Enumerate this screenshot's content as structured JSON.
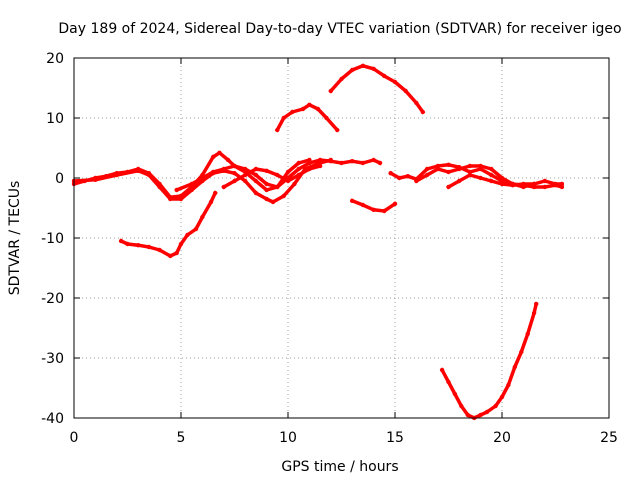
{
  "chart_data": {
    "type": "scatter",
    "title": "Day 189 of 2024, Sidereal Day-to-day VTEC variation (SDTVAR) for receiver igeo",
    "xlabel": "GPS time / hours",
    "ylabel": "SDTVAR / TECUs",
    "xlim": [
      0,
      25
    ],
    "ylim": [
      -40,
      20
    ],
    "xticks": [
      0,
      5,
      10,
      15,
      20,
      25
    ],
    "yticks": [
      -40,
      -30,
      -20,
      -10,
      0,
      10,
      20
    ],
    "grid": true,
    "legend": "none",
    "series_color": "#ff0000",
    "series": [
      {
        "name": "track-1",
        "points": [
          [
            0.0,
            -1.0
          ],
          [
            0.5,
            -0.5
          ],
          [
            1.0,
            0.0
          ],
          [
            1.5,
            0.3
          ],
          [
            2.0,
            0.8
          ],
          [
            2.5,
            1.0
          ],
          [
            3.0,
            1.5
          ],
          [
            3.5,
            0.8
          ],
          [
            4.0,
            -1.0
          ],
          [
            4.5,
            -3.2
          ],
          [
            5.0,
            -3.0
          ],
          [
            5.5,
            -1.5
          ],
          [
            6.0,
            0.5
          ],
          [
            6.5,
            3.5
          ],
          [
            6.8,
            4.2
          ],
          [
            7.2,
            3.0
          ],
          [
            7.5,
            2.0
          ],
          [
            8.0,
            1.0
          ],
          [
            8.5,
            -0.5
          ],
          [
            9.0,
            -2.0
          ],
          [
            9.5,
            -1.5
          ],
          [
            10.0,
            1.0
          ],
          [
            10.5,
            2.5
          ],
          [
            11.0,
            3.0
          ]
        ]
      },
      {
        "name": "track-2",
        "points": [
          [
            0.0,
            -0.5
          ],
          [
            1.0,
            -0.3
          ],
          [
            2.0,
            0.5
          ],
          [
            3.0,
            1.2
          ],
          [
            3.5,
            0.5
          ],
          [
            4.0,
            -1.5
          ],
          [
            4.5,
            -3.5
          ],
          [
            5.0,
            -3.5
          ],
          [
            5.5,
            -2.0
          ],
          [
            6.0,
            -0.5
          ],
          [
            6.5,
            0.8
          ],
          [
            7.0,
            1.2
          ],
          [
            7.5,
            0.8
          ],
          [
            8.0,
            -0.5
          ],
          [
            8.5,
            -2.5
          ],
          [
            9.0,
            -3.5
          ],
          [
            9.3,
            -4.0
          ],
          [
            9.8,
            -3.0
          ],
          [
            10.3,
            -1.0
          ],
          [
            10.8,
            1.5
          ],
          [
            11.5,
            2.5
          ],
          [
            12.0,
            3.0
          ]
        ]
      },
      {
        "name": "track-3",
        "points": [
          [
            4.8,
            -2.0
          ],
          [
            5.5,
            -1.0
          ],
          [
            6.0,
            0.0
          ],
          [
            6.5,
            1.0
          ],
          [
            7.0,
            1.5
          ],
          [
            7.5,
            2.0
          ],
          [
            8.0,
            1.5
          ],
          [
            8.5,
            0.5
          ],
          [
            9.0,
            -1.0
          ],
          [
            9.5,
            -1.5
          ],
          [
            10.0,
            0.0
          ],
          [
            10.5,
            1.5
          ],
          [
            11.0,
            2.5
          ],
          [
            11.5,
            3.0
          ],
          [
            12.0,
            2.8
          ],
          [
            12.5,
            2.5
          ],
          [
            13.0,
            2.8
          ],
          [
            13.5,
            2.5
          ],
          [
            14.0,
            3.0
          ],
          [
            14.3,
            2.5
          ]
        ]
      },
      {
        "name": "track-4",
        "points": [
          [
            7.0,
            -1.5
          ],
          [
            7.5,
            -0.5
          ],
          [
            8.0,
            0.5
          ],
          [
            8.5,
            1.5
          ],
          [
            9.0,
            1.2
          ],
          [
            9.5,
            0.5
          ],
          [
            10.0,
            -0.5
          ],
          [
            10.5,
            0.5
          ],
          [
            11.0,
            1.5
          ],
          [
            11.5,
            2.0
          ]
        ]
      },
      {
        "name": "track-5",
        "points": [
          [
            2.2,
            -10.5
          ],
          [
            2.5,
            -11.0
          ],
          [
            3.0,
            -11.2
          ],
          [
            3.5,
            -11.5
          ],
          [
            4.0,
            -12.0
          ],
          [
            4.5,
            -13.0
          ],
          [
            4.8,
            -12.5
          ],
          [
            5.0,
            -11.0
          ],
          [
            5.3,
            -9.5
          ],
          [
            5.7,
            -8.5
          ],
          [
            6.0,
            -6.5
          ],
          [
            6.4,
            -4.0
          ],
          [
            6.6,
            -2.5
          ]
        ]
      },
      {
        "name": "track-6",
        "points": [
          [
            9.5,
            8.0
          ],
          [
            9.8,
            10.0
          ],
          [
            10.2,
            11.0
          ],
          [
            10.7,
            11.5
          ],
          [
            11.0,
            12.2
          ],
          [
            11.4,
            11.5
          ],
          [
            11.8,
            10.0
          ],
          [
            12.3,
            8.0
          ]
        ]
      },
      {
        "name": "track-7",
        "points": [
          [
            12.0,
            14.5
          ],
          [
            12.5,
            16.5
          ],
          [
            13.0,
            18.0
          ],
          [
            13.5,
            18.7
          ],
          [
            14.0,
            18.2
          ],
          [
            14.5,
            17.0
          ],
          [
            15.0,
            16.0
          ],
          [
            15.5,
            14.5
          ],
          [
            16.0,
            12.5
          ],
          [
            16.3,
            11.0
          ]
        ]
      },
      {
        "name": "track-8",
        "points": [
          [
            13.0,
            -3.8
          ],
          [
            13.5,
            -4.5
          ],
          [
            14.0,
            -5.3
          ],
          [
            14.5,
            -5.5
          ],
          [
            15.0,
            -4.3
          ]
        ]
      },
      {
        "name": "track-9",
        "points": [
          [
            14.8,
            0.8
          ],
          [
            15.2,
            0.0
          ],
          [
            15.6,
            0.3
          ],
          [
            16.0,
            -0.2
          ],
          [
            16.5,
            1.5
          ],
          [
            17.0,
            2.0
          ],
          [
            17.5,
            2.2
          ],
          [
            18.0,
            1.8
          ],
          [
            18.5,
            1.0
          ],
          [
            19.0,
            1.5
          ],
          [
            19.5,
            0.5
          ],
          [
            20.0,
            -0.5
          ],
          [
            20.5,
            -1.0
          ],
          [
            21.0,
            -1.2
          ],
          [
            21.5,
            -1.5
          ],
          [
            22.0,
            -1.5
          ],
          [
            22.5,
            -1.2
          ],
          [
            22.8,
            -1.5
          ]
        ]
      },
      {
        "name": "track-10",
        "points": [
          [
            16.0,
            -0.5
          ],
          [
            16.5,
            0.5
          ],
          [
            17.0,
            1.5
          ],
          [
            17.5,
            1.0
          ],
          [
            18.0,
            1.5
          ],
          [
            18.5,
            2.0
          ],
          [
            19.0,
            2.0
          ],
          [
            19.5,
            1.5
          ],
          [
            20.0,
            0.0
          ],
          [
            20.5,
            -1.0
          ],
          [
            21.0,
            -1.5
          ],
          [
            21.5,
            -1.0
          ],
          [
            22.0,
            -0.5
          ],
          [
            22.5,
            -1.0
          ],
          [
            22.8,
            -1.0
          ]
        ]
      },
      {
        "name": "track-11",
        "points": [
          [
            17.5,
            -1.5
          ],
          [
            18.0,
            -0.5
          ],
          [
            18.5,
            0.5
          ],
          [
            19.0,
            0.0
          ],
          [
            19.5,
            -0.5
          ],
          [
            20.0,
            -1.0
          ],
          [
            20.5,
            -1.2
          ],
          [
            21.0,
            -1.0
          ],
          [
            21.5,
            -1.0
          ]
        ]
      },
      {
        "name": "track-12",
        "points": [
          [
            17.2,
            -32.0
          ],
          [
            17.5,
            -34.0
          ],
          [
            17.8,
            -36.0
          ],
          [
            18.1,
            -38.0
          ],
          [
            18.4,
            -39.5
          ],
          [
            18.7,
            -40.0
          ],
          [
            19.0,
            -39.5
          ],
          [
            19.3,
            -39.0
          ],
          [
            19.7,
            -38.0
          ],
          [
            20.0,
            -36.5
          ],
          [
            20.3,
            -34.5
          ],
          [
            20.6,
            -31.5
          ],
          [
            20.9,
            -29.0
          ],
          [
            21.2,
            -26.0
          ],
          [
            21.5,
            -22.5
          ],
          [
            21.6,
            -21.0
          ]
        ]
      }
    ]
  }
}
